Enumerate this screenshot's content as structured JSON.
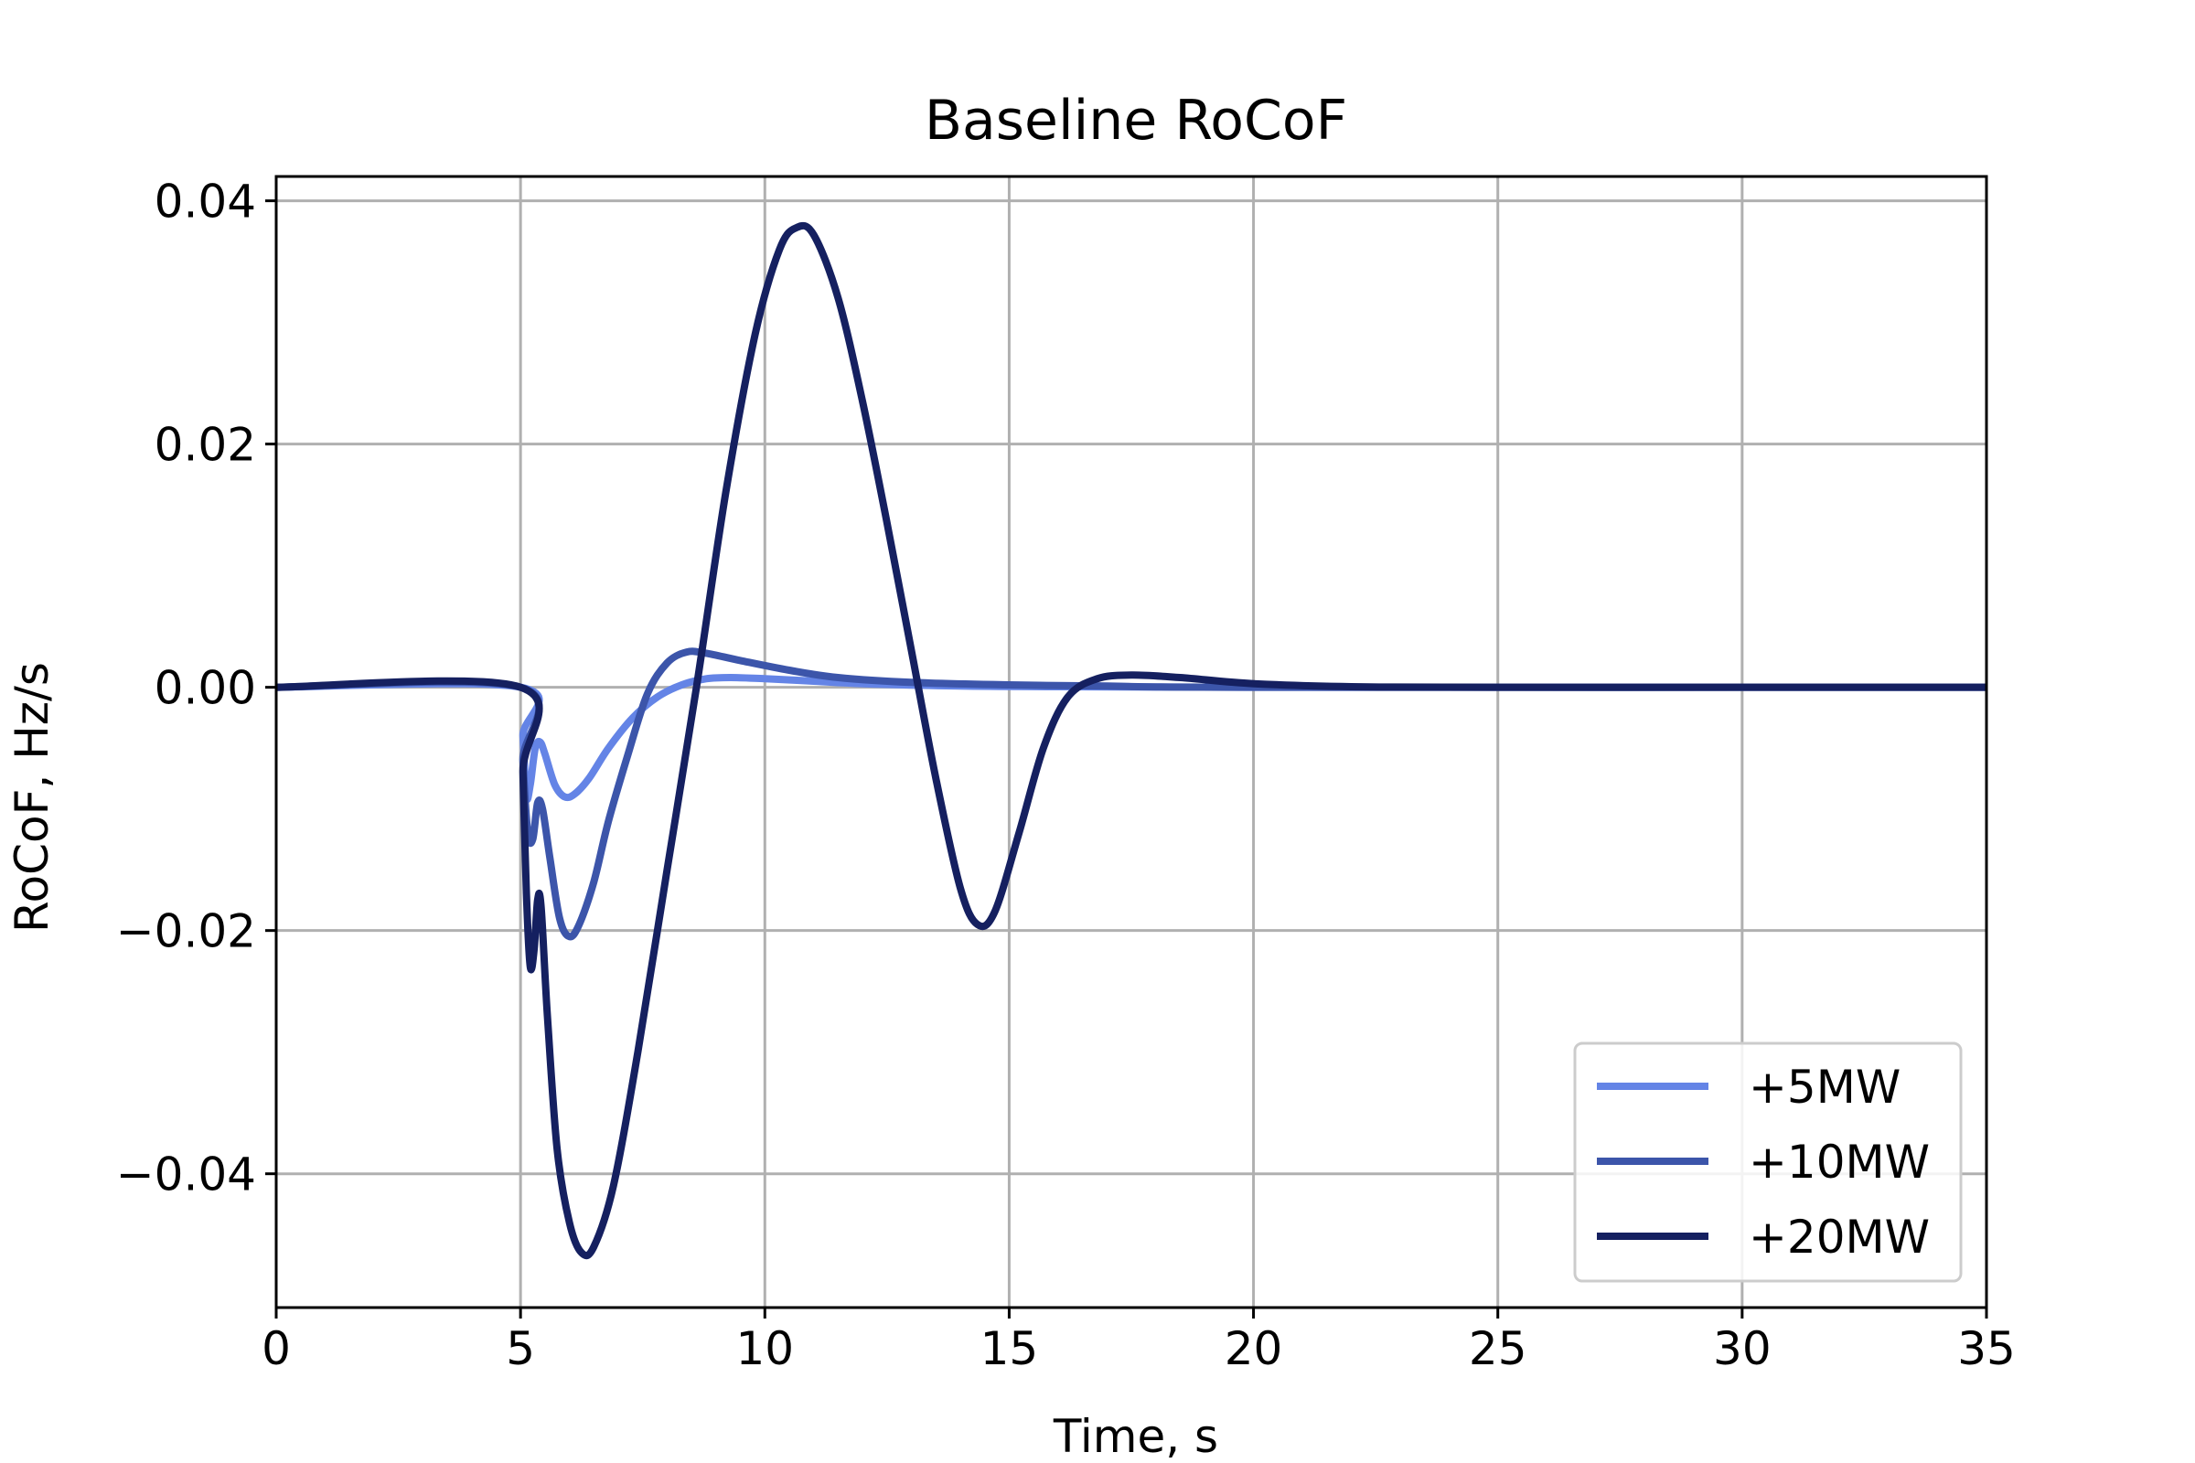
{
  "chart_data": {
    "type": "line",
    "title": "Baseline RoCoF",
    "xlabel": "Time, s",
    "ylabel": "RoCoF, Hz/s",
    "xlim": [
      0,
      35
    ],
    "ylim": [
      -0.051,
      0.042
    ],
    "grid": true,
    "legend_position": "bottom-right",
    "x_ticks": [
      0,
      5,
      10,
      15,
      20,
      25,
      30,
      35
    ],
    "x_tick_labels": [
      "0",
      "5",
      "10",
      "15",
      "20",
      "25",
      "30",
      "35"
    ],
    "y_ticks": [
      0.04,
      0.02,
      0.0,
      -0.02,
      -0.04
    ],
    "y_tick_labels": [
      "0.04",
      "0.02",
      "0.00",
      "−0.02",
      "−0.04"
    ],
    "series": [
      {
        "name": "+5MW",
        "color": "#6484e6",
        "points": [
          [
            0,
            0
          ],
          [
            5.0,
            0
          ],
          [
            5.05,
            -0.004
          ],
          [
            5.12,
            -0.009
          ],
          [
            5.2,
            -0.008
          ],
          [
            5.3,
            -0.005
          ],
          [
            5.4,
            -0.0045
          ],
          [
            5.5,
            -0.0055
          ],
          [
            5.7,
            -0.008
          ],
          [
            5.9,
            -0.009
          ],
          [
            6.1,
            -0.0088
          ],
          [
            6.4,
            -0.0075
          ],
          [
            6.8,
            -0.005
          ],
          [
            7.3,
            -0.0025
          ],
          [
            7.8,
            -0.0008
          ],
          [
            8.3,
            0.0002
          ],
          [
            8.8,
            0.0007
          ],
          [
            9.3,
            0.0008
          ],
          [
            10,
            0.0007
          ],
          [
            11,
            0.0005
          ],
          [
            12,
            0.0003
          ],
          [
            14,
            0.0001
          ],
          [
            16,
            5e-05
          ],
          [
            20,
            0
          ],
          [
            35,
            0
          ]
        ]
      },
      {
        "name": "+10MW",
        "color": "#3c55aa",
        "points": [
          [
            0,
            0
          ],
          [
            5.0,
            0
          ],
          [
            5.05,
            -0.006
          ],
          [
            5.15,
            -0.012
          ],
          [
            5.25,
            -0.0125
          ],
          [
            5.35,
            -0.0095
          ],
          [
            5.45,
            -0.01
          ],
          [
            5.6,
            -0.014
          ],
          [
            5.8,
            -0.019
          ],
          [
            6.0,
            -0.0205
          ],
          [
            6.2,
            -0.0195
          ],
          [
            6.5,
            -0.016
          ],
          [
            6.8,
            -0.011
          ],
          [
            7.2,
            -0.0055
          ],
          [
            7.6,
            -0.0005
          ],
          [
            8.0,
            0.002
          ],
          [
            8.4,
            0.0029
          ],
          [
            8.8,
            0.0028
          ],
          [
            9.5,
            0.0022
          ],
          [
            10.5,
            0.0014
          ],
          [
            11.5,
            0.0008
          ],
          [
            13,
            0.0004
          ],
          [
            15,
            0.0002
          ],
          [
            17,
            0.0001
          ],
          [
            20,
            0
          ],
          [
            35,
            0
          ]
        ]
      },
      {
        "name": "+20MW",
        "color": "#152060",
        "points": [
          [
            0,
            0
          ],
          [
            5.0,
            0
          ],
          [
            5.05,
            -0.007
          ],
          [
            5.12,
            -0.017
          ],
          [
            5.2,
            -0.023
          ],
          [
            5.28,
            -0.0215
          ],
          [
            5.35,
            -0.0175
          ],
          [
            5.42,
            -0.018
          ],
          [
            5.55,
            -0.027
          ],
          [
            5.75,
            -0.038
          ],
          [
            6.0,
            -0.044
          ],
          [
            6.25,
            -0.0465
          ],
          [
            6.5,
            -0.046
          ],
          [
            6.9,
            -0.041
          ],
          [
            7.4,
            -0.03
          ],
          [
            8.0,
            -0.015
          ],
          [
            8.6,
            0.0
          ],
          [
            9.2,
            0.016
          ],
          [
            9.8,
            0.029
          ],
          [
            10.3,
            0.036
          ],
          [
            10.65,
            0.0378
          ],
          [
            11.0,
            0.0372
          ],
          [
            11.5,
            0.032
          ],
          [
            12.0,
            0.0235
          ],
          [
            12.5,
            0.0135
          ],
          [
            13.0,
            0.003
          ],
          [
            13.5,
            -0.0075
          ],
          [
            14.0,
            -0.0165
          ],
          [
            14.35,
            -0.0195
          ],
          [
            14.7,
            -0.0185
          ],
          [
            15.2,
            -0.012
          ],
          [
            15.7,
            -0.005
          ],
          [
            16.2,
            -0.0008
          ],
          [
            16.8,
            0.0007
          ],
          [
            17.5,
            0.001
          ],
          [
            18.5,
            0.0008
          ],
          [
            20,
            0.0003
          ],
          [
            22,
            5e-05
          ],
          [
            25,
            0
          ],
          [
            35,
            0
          ]
        ]
      }
    ]
  }
}
